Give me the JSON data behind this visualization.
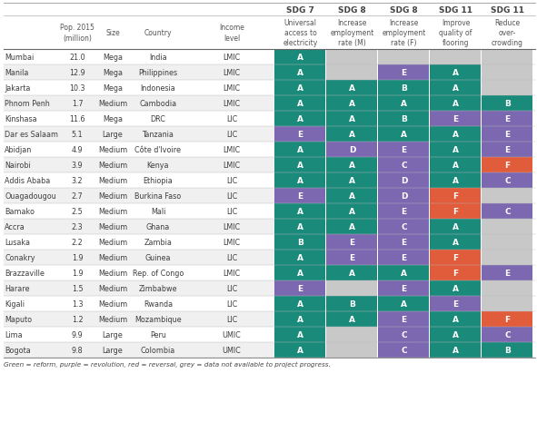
{
  "cities": [
    "Mumbai",
    "Manila",
    "Jakarta",
    "Phnom Penh",
    "Kinshasa",
    "Dar es Salaam",
    "Abidjan",
    "Nairobi",
    "Addis Ababa",
    "Ouagadougou",
    "Bamako",
    "Accra",
    "Lusaka",
    "Conakry",
    "Brazzaville",
    "Harare",
    "Kigali",
    "Maputo",
    "Lima",
    "Bogota"
  ],
  "pop": [
    "21.0",
    "12.9",
    "10.3",
    "1.7",
    "11.6",
    "5.1",
    "4.9",
    "3.9",
    "3.2",
    "2.7",
    "2.5",
    "2.3",
    "2.2",
    "1.9",
    "1.9",
    "1.5",
    "1.3",
    "1.2",
    "9.9",
    "9.8"
  ],
  "size": [
    "Mega",
    "Mega",
    "Mega",
    "Medium",
    "Mega",
    "Large",
    "Medium",
    "Medium",
    "Medium",
    "Medium",
    "Medium",
    "Medium",
    "Medium",
    "Medium",
    "Medium",
    "Medium",
    "Medium",
    "Medium",
    "Large",
    "Large"
  ],
  "country": [
    "India",
    "Philippines",
    "Indonesia",
    "Cambodia",
    "DRC",
    "Tanzania",
    "Côte d'Ivoire",
    "Kenya",
    "Ethiopia",
    "Burkina Faso",
    "Mali",
    "Ghana",
    "Zambia",
    "Guinea",
    "Rep. of Congo",
    "Zimbabwe",
    "Rwanda",
    "Mozambique",
    "Peru",
    "Colombia"
  ],
  "income": [
    "LMIC",
    "LMIC",
    "LMIC",
    "LMIC",
    "LIC",
    "LIC",
    "LMIC",
    "LMIC",
    "LIC",
    "LIC",
    "LIC",
    "LMIC",
    "LMIC",
    "LIC",
    "LMIC",
    "LIC",
    "LIC",
    "LIC",
    "UMIC",
    "UMIC"
  ],
  "sdg_data": [
    [
      "A",
      "",
      "",
      "",
      ""
    ],
    [
      "A",
      "",
      "E",
      "A",
      ""
    ],
    [
      "A",
      "A",
      "B",
      "A",
      ""
    ],
    [
      "A",
      "A",
      "A",
      "A",
      "B"
    ],
    [
      "A",
      "A",
      "B",
      "E",
      "E"
    ],
    [
      "E",
      "A",
      "A",
      "A",
      "E"
    ],
    [
      "A",
      "D",
      "E",
      "A",
      "E"
    ],
    [
      "A",
      "A",
      "C",
      "A",
      "F"
    ],
    [
      "A",
      "A",
      "D",
      "A",
      "C"
    ],
    [
      "E",
      "A",
      "D",
      "F",
      ""
    ],
    [
      "A",
      "A",
      "E",
      "F",
      "C"
    ],
    [
      "A",
      "A",
      "C",
      "A",
      ""
    ],
    [
      "B",
      "E",
      "E",
      "A",
      ""
    ],
    [
      "A",
      "E",
      "E",
      "F",
      ""
    ],
    [
      "A",
      "A",
      "A",
      "F",
      "E"
    ],
    [
      "E",
      "",
      "E",
      "A",
      ""
    ],
    [
      "A",
      "B",
      "A",
      "E",
      ""
    ],
    [
      "A",
      "A",
      "E",
      "A",
      "F"
    ],
    [
      "A",
      "",
      "C",
      "A",
      "C"
    ],
    [
      "A",
      "",
      "C",
      "A",
      "B"
    ]
  ],
  "color_A": "#1a8a7a",
  "color_B": "#1a8a7a",
  "color_C": "#7b68b0",
  "color_D": "#7b68b0",
  "color_E": "#7b68b0",
  "color_F": "#e05c3a",
  "color_empty": "#c8c8c8",
  "sdg_headers": [
    "SDG 7",
    "SDG 8",
    "SDG 8",
    "SDG 11",
    "SDG 11"
  ],
  "sdg_subheaders": [
    "Universal\naccess to\nelectricity",
    "Increase\nemployment\nrate (M)",
    "Increase\nemployment\nrate (F)",
    "Improve\nquality of\nflooring",
    "Reduce\nover-\ncrowding"
  ],
  "left_headers": [
    "Pop. 2015\n(million)",
    "Size",
    "Country",
    "Income\nlevel"
  ],
  "footer": "Green = reform, purple = revolution, red = reversal, grey = data not available to project progress.",
  "bg_color": "#ffffff",
  "text_dark": "#3d3d3d",
  "text_header": "#555555",
  "text_sdg_header": "#444444"
}
